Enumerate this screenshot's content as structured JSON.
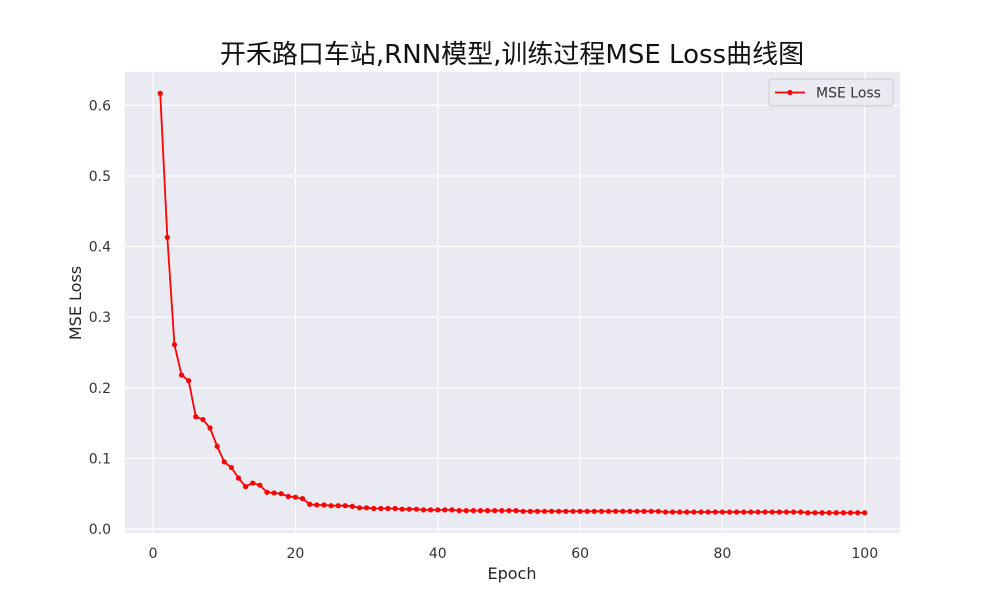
{
  "chart_data": {
    "type": "line",
    "title": "开禾路口车站,RNN模型,训练过程MSE Loss曲线图",
    "xlabel": "Epoch",
    "ylabel": "MSE Loss",
    "xlim": [
      -3.95,
      104.95
    ],
    "ylim": [
      -0.0057,
      0.6473
    ],
    "xticks": [
      0,
      20,
      40,
      60,
      80,
      100
    ],
    "xtick_labels": [
      "0",
      "20",
      "40",
      "60",
      "80",
      "100"
    ],
    "yticks": [
      0.0,
      0.1,
      0.2,
      0.3,
      0.4,
      0.5,
      0.6
    ],
    "ytick_labels": [
      "0.0",
      "0.1",
      "0.2",
      "0.3",
      "0.4",
      "0.5",
      "0.6"
    ],
    "grid": true,
    "legend_position": "top-right",
    "series": [
      {
        "name": "MSE Loss",
        "color": "#ff0000",
        "marker": "circle",
        "x": [
          1,
          2,
          3,
          4,
          5,
          6,
          7,
          8,
          9,
          10,
          11,
          12,
          13,
          14,
          15,
          16,
          17,
          18,
          19,
          20,
          21,
          22,
          23,
          24,
          25,
          26,
          27,
          28,
          29,
          30,
          31,
          32,
          33,
          34,
          35,
          36,
          37,
          38,
          39,
          40,
          41,
          42,
          43,
          44,
          45,
          46,
          47,
          48,
          49,
          50,
          51,
          52,
          53,
          54,
          55,
          56,
          57,
          58,
          59,
          60,
          61,
          62,
          63,
          64,
          65,
          66,
          67,
          68,
          69,
          70,
          71,
          72,
          73,
          74,
          75,
          76,
          77,
          78,
          79,
          80,
          81,
          82,
          83,
          84,
          85,
          86,
          87,
          88,
          89,
          90,
          91,
          92,
          93,
          94,
          95,
          96,
          97,
          98,
          99,
          100
        ],
        "y": [
          0.617,
          0.413,
          0.261,
          0.218,
          0.21,
          0.159,
          0.155,
          0.143,
          0.117,
          0.095,
          0.087,
          0.072,
          0.06,
          0.065,
          0.062,
          0.052,
          0.051,
          0.05,
          0.046,
          0.045,
          0.043,
          0.035,
          0.034,
          0.034,
          0.033,
          0.033,
          0.033,
          0.032,
          0.03,
          0.03,
          0.029,
          0.029,
          0.029,
          0.029,
          0.028,
          0.028,
          0.028,
          0.027,
          0.027,
          0.027,
          0.027,
          0.027,
          0.026,
          0.026,
          0.026,
          0.026,
          0.026,
          0.026,
          0.026,
          0.026,
          0.026,
          0.025,
          0.025,
          0.025,
          0.025,
          0.025,
          0.025,
          0.025,
          0.025,
          0.025,
          0.025,
          0.025,
          0.025,
          0.025,
          0.025,
          0.025,
          0.025,
          0.025,
          0.025,
          0.025,
          0.025,
          0.024,
          0.024,
          0.024,
          0.024,
          0.024,
          0.024,
          0.024,
          0.024,
          0.024,
          0.024,
          0.024,
          0.024,
          0.024,
          0.024,
          0.024,
          0.024,
          0.024,
          0.024,
          0.024,
          0.024,
          0.023,
          0.023,
          0.023,
          0.023,
          0.023,
          0.023,
          0.023,
          0.023,
          0.023
        ]
      }
    ]
  }
}
